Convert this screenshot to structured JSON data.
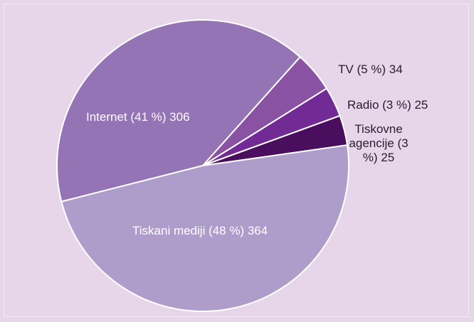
{
  "chart_data": {
    "type": "pie",
    "value_labels": [
      "Internet (41 %) 306",
      "TV (5 %) 34",
      "Radio (3 %) 25",
      "Tiskovne agencije (3 %) 25",
      "Tiskani mediji (48 %) 364"
    ],
    "values": [
      306,
      34,
      25,
      25,
      364
    ],
    "colors": [
      "#9474b4",
      "#8a52a3",
      "#722a94",
      "#4a0e5e",
      "#ae9ccb"
    ]
  }
}
